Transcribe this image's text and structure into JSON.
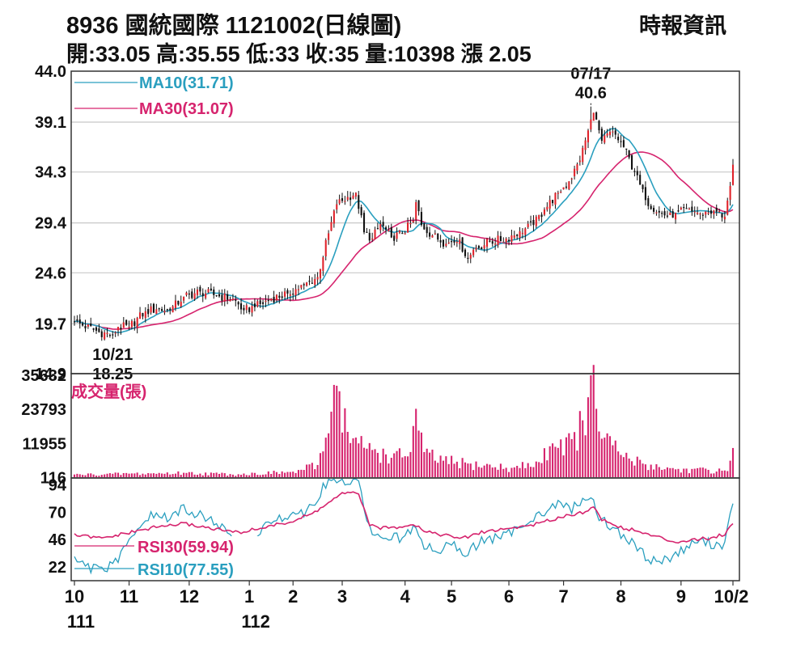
{
  "header": {
    "title": "8936  國統國際 1121002(日線圖)",
    "source": "時報資訊",
    "quote": "開:33.05 高:35.55 低:33 收:35 量:10398 漲 2.05"
  },
  "colors": {
    "candle_up": "#e0232b",
    "candle_down": "#111111",
    "ma10": "#2a9fbf",
    "ma30": "#d6246e",
    "volume": "#d6246e",
    "rsi30": "#d6246e",
    "rsi10": "#2a9fbf",
    "grid": "#c8c8c8"
  },
  "chart_data": [
    {
      "type": "line",
      "panel": "price",
      "title": "",
      "yticks": [
        "44.0",
        "39.1",
        "34.3",
        "29.4",
        "24.6",
        "19.7",
        "14.9"
      ],
      "ylim": [
        14.9,
        44.0
      ],
      "grid": true,
      "legend_position": "top-left",
      "x_months": [
        {
          "label": "10",
          "year": "111",
          "day_index": 0
        },
        {
          "label": "11",
          "day_index": 20
        },
        {
          "label": "12",
          "day_index": 42
        },
        {
          "label": "1",
          "year": "112",
          "day_index": 64
        },
        {
          "label": "2",
          "day_index": 80
        },
        {
          "label": "3",
          "day_index": 98
        },
        {
          "label": "4",
          "day_index": 121
        },
        {
          "label": "5",
          "day_index": 138
        },
        {
          "label": "6",
          "day_index": 159
        },
        {
          "label": "7",
          "day_index": 179
        },
        {
          "label": "8",
          "day_index": 200
        },
        {
          "label": "9",
          "day_index": 222
        },
        {
          "label": "10/2",
          "day_index": 241
        }
      ],
      "close_anchors": [
        {
          "day": 0,
          "close": 19.9
        },
        {
          "day": 9,
          "close": 18.9
        },
        {
          "day": 14,
          "close": 18.6
        },
        {
          "day": 16,
          "close": 19.4
        },
        {
          "day": 20,
          "close": 19.4
        },
        {
          "day": 26,
          "close": 20.9
        },
        {
          "day": 30,
          "close": 21.1
        },
        {
          "day": 35,
          "close": 21.0
        },
        {
          "day": 40,
          "close": 22.3
        },
        {
          "day": 46,
          "close": 22.8
        },
        {
          "day": 52,
          "close": 22.4
        },
        {
          "day": 58,
          "close": 22.1
        },
        {
          "day": 62,
          "close": 21.0
        },
        {
          "day": 66,
          "close": 21.3
        },
        {
          "day": 72,
          "close": 22.1
        },
        {
          "day": 78,
          "close": 22.6
        },
        {
          "day": 84,
          "close": 23.4
        },
        {
          "day": 89,
          "close": 24.2
        },
        {
          "day": 93,
          "close": 28.4
        },
        {
          "day": 96,
          "close": 31.2
        },
        {
          "day": 100,
          "close": 31.9
        },
        {
          "day": 103,
          "close": 32.3
        },
        {
          "day": 106,
          "close": 28.5
        },
        {
          "day": 109,
          "close": 27.9
        },
        {
          "day": 112,
          "close": 29.3
        },
        {
          "day": 116,
          "close": 28.0
        },
        {
          "day": 120,
          "close": 28.4
        },
        {
          "day": 124,
          "close": 29.6
        },
        {
          "day": 125,
          "close": 31.4
        },
        {
          "day": 127,
          "close": 29.2
        },
        {
          "day": 131,
          "close": 28.2
        },
        {
          "day": 136,
          "close": 27.4
        },
        {
          "day": 141,
          "close": 27.8
        },
        {
          "day": 143,
          "close": 26.2
        },
        {
          "day": 147,
          "close": 27.0
        },
        {
          "day": 152,
          "close": 27.6
        },
        {
          "day": 158,
          "close": 27.9
        },
        {
          "day": 163,
          "close": 28.6
        },
        {
          "day": 168,
          "close": 29.2
        },
        {
          "day": 172,
          "close": 30.7
        },
        {
          "day": 177,
          "close": 32.3
        },
        {
          "day": 181,
          "close": 33.4
        },
        {
          "day": 185,
          "close": 35.4
        },
        {
          "day": 188,
          "close": 38.3
        },
        {
          "day": 190,
          "close": 40.0
        },
        {
          "day": 193,
          "close": 37.3
        },
        {
          "day": 197,
          "close": 38.2
        },
        {
          "day": 201,
          "close": 36.7
        },
        {
          "day": 205,
          "close": 34.3
        },
        {
          "day": 209,
          "close": 31.6
        },
        {
          "day": 214,
          "close": 30.4
        },
        {
          "day": 219,
          "close": 29.9
        },
        {
          "day": 224,
          "close": 30.8
        },
        {
          "day": 229,
          "close": 30.3
        },
        {
          "day": 234,
          "close": 30.6
        },
        {
          "day": 238,
          "close": 30.0
        },
        {
          "day": 240,
          "close": 32.95
        },
        {
          "day": 241,
          "close": 35.0
        }
      ],
      "series": [
        {
          "name": "MA10(31.71)",
          "period": 10
        },
        {
          "name": "MA30(31.07)",
          "period": 30
        }
      ],
      "annotations": [
        {
          "date": "07/17",
          "value": "40.6",
          "day_index": 189,
          "price": 40.6
        },
        {
          "date": "10/21",
          "value": "18.25",
          "day_index": 14,
          "price": 18.25
        }
      ]
    },
    {
      "type": "bar",
      "panel": "volume",
      "title": "成交量(張)",
      "yticks": [
        "35632",
        "23793",
        "11955",
        "116"
      ],
      "ylim": [
        0,
        35632
      ],
      "volume_anchors": [
        {
          "day": 0,
          "vol": 1200
        },
        {
          "day": 20,
          "vol": 1500
        },
        {
          "day": 40,
          "vol": 1800
        },
        {
          "day": 60,
          "vol": 1300
        },
        {
          "day": 80,
          "vol": 2200
        },
        {
          "day": 89,
          "vol": 4500
        },
        {
          "day": 92,
          "vol": 14000
        },
        {
          "day": 94,
          "vol": 23000
        },
        {
          "day": 96,
          "vol": 32000
        },
        {
          "day": 100,
          "vol": 16000
        },
        {
          "day": 104,
          "vol": 12000
        },
        {
          "day": 110,
          "vol": 10000
        },
        {
          "day": 116,
          "vol": 7000
        },
        {
          "day": 123,
          "vol": 9000
        },
        {
          "day": 125,
          "vol": 24000
        },
        {
          "day": 128,
          "vol": 9000
        },
        {
          "day": 135,
          "vol": 6000
        },
        {
          "day": 145,
          "vol": 5000
        },
        {
          "day": 160,
          "vol": 3500
        },
        {
          "day": 170,
          "vol": 5500
        },
        {
          "day": 175,
          "vol": 12000
        },
        {
          "day": 182,
          "vol": 13500
        },
        {
          "day": 186,
          "vol": 20000
        },
        {
          "day": 188,
          "vol": 28000
        },
        {
          "day": 189,
          "vol": 35632
        },
        {
          "day": 191,
          "vol": 24000
        },
        {
          "day": 194,
          "vol": 14000
        },
        {
          "day": 200,
          "vol": 8000
        },
        {
          "day": 208,
          "vol": 5000
        },
        {
          "day": 220,
          "vol": 3000
        },
        {
          "day": 238,
          "vol": 2600
        },
        {
          "day": 240,
          "vol": 6000
        },
        {
          "day": 241,
          "vol": 10398
        }
      ]
    },
    {
      "type": "line",
      "panel": "rsi",
      "yticks": [
        "94",
        "70",
        "46",
        "22"
      ],
      "ylim": [
        10,
        100
      ],
      "series": [
        {
          "name": "RSI30(59.94)",
          "points": [
            [
              0,
              50
            ],
            [
              10,
              47
            ],
            [
              20,
              52
            ],
            [
              30,
              57
            ],
            [
              40,
              60
            ],
            [
              50,
              56
            ],
            [
              60,
              52
            ],
            [
              70,
              57
            ],
            [
              80,
              62
            ],
            [
              88,
              70
            ],
            [
              94,
              80
            ],
            [
              98,
              86
            ],
            [
              104,
              87
            ],
            [
              108,
              58
            ],
            [
              113,
              56
            ],
            [
              118,
              57
            ],
            [
              124,
              60
            ],
            [
              128,
              54
            ],
            [
              135,
              50
            ],
            [
              142,
              47
            ],
            [
              150,
              53
            ],
            [
              160,
              56
            ],
            [
              170,
              60
            ],
            [
              178,
              66
            ],
            [
              186,
              70
            ],
            [
              190,
              74
            ],
            [
              193,
              64
            ],
            [
              198,
              58
            ],
            [
              205,
              54
            ],
            [
              212,
              49
            ],
            [
              220,
              44
            ],
            [
              226,
              46
            ],
            [
              232,
              47
            ],
            [
              238,
              51
            ],
            [
              241,
              60
            ]
          ]
        },
        {
          "name": "RSI10(77.55)",
          "points": [
            [
              0,
              27
            ],
            [
              5,
              22
            ],
            [
              10,
              18
            ],
            [
              15,
              26
            ],
            [
              20,
              43
            ],
            [
              25,
              63
            ],
            [
              30,
              68
            ],
            [
              35,
              64
            ],
            [
              40,
              74
            ],
            [
              45,
              68
            ],
            [
              52,
              61
            ],
            [
              60,
              40
            ],
            [
              66,
              46
            ],
            [
              72,
              63
            ],
            [
              78,
              68
            ],
            [
              84,
              70
            ],
            [
              88,
              80
            ],
            [
              92,
              95
            ],
            [
              96,
              98
            ],
            [
              104,
              97
            ],
            [
              106,
              73
            ],
            [
              110,
              46
            ],
            [
              115,
              50
            ],
            [
              120,
              46
            ],
            [
              124,
              57
            ],
            [
              127,
              42
            ],
            [
              133,
              36
            ],
            [
              138,
              42
            ],
            [
              142,
              33
            ],
            [
              150,
              46
            ],
            [
              158,
              49
            ],
            [
              166,
              64
            ],
            [
              172,
              70
            ],
            [
              178,
              78
            ],
            [
              182,
              73
            ],
            [
              186,
              80
            ],
            [
              190,
              82
            ],
            [
              192,
              65
            ],
            [
              198,
              55
            ],
            [
              205,
              41
            ],
            [
              210,
              29
            ],
            [
              215,
              27
            ],
            [
              222,
              36
            ],
            [
              228,
              45
            ],
            [
              234,
              42
            ],
            [
              238,
              42
            ],
            [
              241,
              77.55
            ]
          ]
        }
      ]
    }
  ]
}
